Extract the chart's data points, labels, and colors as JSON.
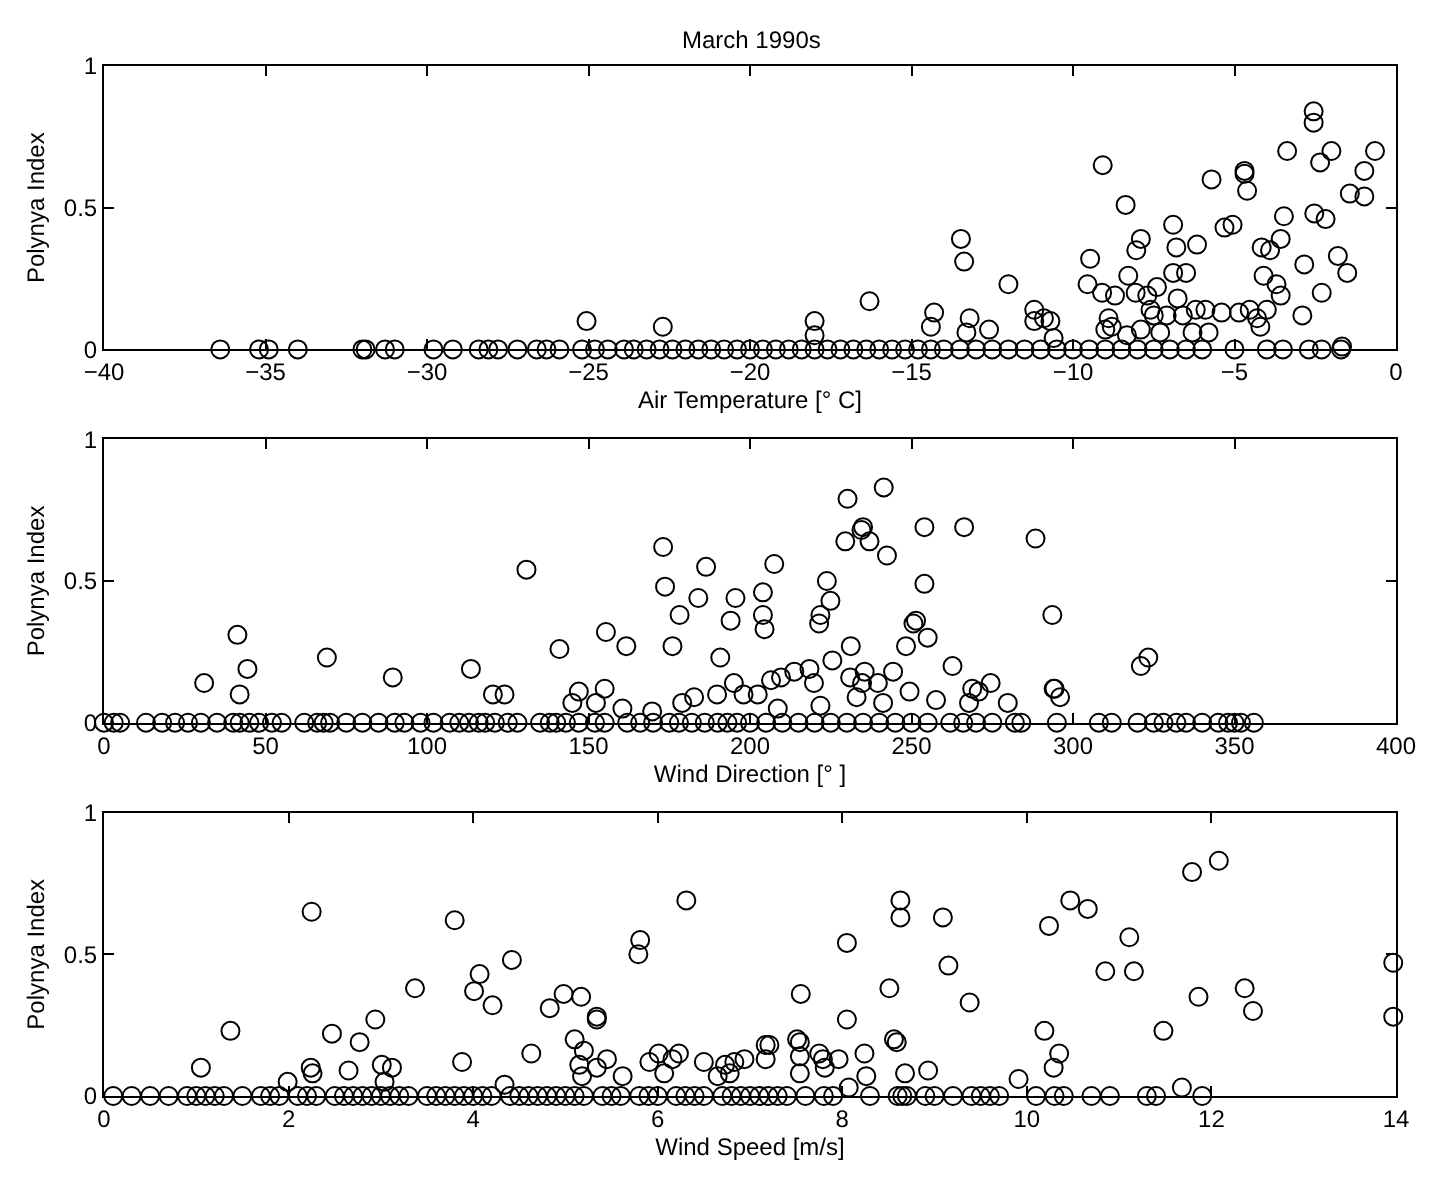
{
  "chart_data": [
    {
      "type": "scatter",
      "title": "March 1990s",
      "xlabel": "Air Temperature [° C]",
      "ylabel": "Polynya Index",
      "marker": "circle",
      "xlim": [
        -40,
        0
      ],
      "xticks": [
        -40,
        -35,
        -30,
        -25,
        -20,
        -15,
        -10,
        -5,
        0
      ],
      "ylim": [
        0,
        1
      ],
      "yticks": [
        0,
        0.5,
        1
      ],
      "series": [
        {
          "color": "#000000",
          "x": [
            -2.55,
            -2.55,
            -3.37,
            -2.0,
            -2.35,
            -0.65,
            -0.98,
            -1.43,
            -0.98,
            -2.53,
            -2.18,
            -9.08,
            -4.69,
            -4.69,
            -5.71,
            -4.61,
            -8.37,
            -3.47,
            -6.9,
            -5.31,
            -5.06,
            -7.9,
            -8.04,
            -6.8,
            -6.16,
            -4.16,
            -3.9,
            -3.57,
            -13.47,
            -13.37,
            -9.47,
            -2.84,
            -1.8,
            -1.51,
            -8.29,
            -6.9,
            -6.5,
            -4.1,
            -3.7,
            -12.0,
            -9.55,
            -9.1,
            -8.7,
            -8.06,
            -7.7,
            -7.4,
            -3.57,
            -2.3,
            -16.3,
            -18.0,
            -14.3,
            -14.4,
            -13.2,
            -13.3,
            -12.6,
            -11.2,
            -11.2,
            -10.9,
            -10.7,
            -10.6,
            -8.9,
            -9.0,
            -8.8,
            -7.6,
            -7.5,
            -7.1,
            -6.76,
            -6.6,
            -6.2,
            -5.9,
            -5.4,
            -4.86,
            -4.53,
            -4.3,
            -4.2,
            -4.0,
            -2.9,
            -8.33,
            -7.9,
            -7.3,
            -6.3,
            -5.8,
            -1.67,
            -18.0,
            -25.06,
            -22.7,
            -36.4,
            -35.2,
            -34.9,
            -34.0,
            -32.0,
            -31.9,
            -31.3,
            -31.0,
            -29.8,
            -29.2,
            -28.4,
            -28.1,
            -27.8,
            -27.2,
            -26.6,
            -26.3,
            -25.9,
            -25.2,
            -24.8,
            -24.4,
            -23.9,
            -23.6,
            -23.2,
            -22.8,
            -22.4,
            -22.0,
            -21.6,
            -21.2,
            -20.8,
            -20.4,
            -20.0,
            -19.6,
            -19.2,
            -18.8,
            -18.4,
            -18.0,
            -17.6,
            -17.2,
            -16.8,
            -16.4,
            -16.0,
            -15.6,
            -15.2,
            -14.8,
            -14.4,
            -14.0,
            -13.5,
            -13.0,
            -12.5,
            -12.0,
            -11.5,
            -11.0,
            -10.5,
            -10.0,
            -9.5,
            -9.0,
            -8.5,
            -8.0,
            -7.5,
            -7.0,
            -6.5,
            -6.0,
            -5.0,
            -4.0,
            -3.5,
            -2.7,
            -2.3,
            -1.7
          ],
          "values": [
            0.84,
            0.8,
            0.7,
            0.7,
            0.66,
            0.7,
            0.63,
            0.55,
            0.54,
            0.48,
            0.46,
            0.65,
            0.63,
            0.62,
            0.6,
            0.56,
            0.51,
            0.47,
            0.44,
            0.43,
            0.44,
            0.39,
            0.35,
            0.36,
            0.37,
            0.36,
            0.35,
            0.39,
            0.39,
            0.31,
            0.32,
            0.3,
            0.33,
            0.27,
            0.26,
            0.27,
            0.27,
            0.26,
            0.23,
            0.23,
            0.23,
            0.2,
            0.19,
            0.2,
            0.19,
            0.22,
            0.19,
            0.2,
            0.17,
            0.1,
            0.13,
            0.08,
            0.11,
            0.06,
            0.07,
            0.14,
            0.1,
            0.11,
            0.1,
            0.04,
            0.11,
            0.07,
            0.08,
            0.14,
            0.12,
            0.12,
            0.18,
            0.12,
            0.14,
            0.14,
            0.13,
            0.13,
            0.14,
            0.11,
            0.08,
            0.14,
            0.12,
            0.05,
            0.07,
            0.06,
            0.06,
            0.06,
            0.01,
            0.05,
            0.1,
            0.08,
            0,
            0,
            0,
            0,
            0,
            0,
            0,
            0,
            0,
            0,
            0,
            0,
            0,
            0,
            0,
            0,
            0,
            0,
            0,
            0,
            0,
            0,
            0,
            0,
            0,
            0,
            0,
            0,
            0,
            0,
            0,
            0,
            0,
            0,
            0,
            0,
            0,
            0,
            0,
            0,
            0,
            0,
            0,
            0,
            0,
            0,
            0,
            0,
            0,
            0,
            0,
            0,
            0,
            0,
            0,
            0,
            0,
            0,
            0,
            0,
            0,
            0,
            0,
            0,
            0,
            0,
            0,
            0
          ]
        }
      ]
    },
    {
      "type": "scatter",
      "xlabel": "Wind Direction [° ]",
      "ylabel": "Polynya Index",
      "marker": "circle",
      "xlim": [
        0,
        400
      ],
      "xticks": [
        0,
        50,
        100,
        150,
        200,
        250,
        300,
        350,
        400
      ],
      "ylim": [
        0,
        1
      ],
      "yticks": [
        0,
        0.5,
        1
      ],
      "series": [
        {
          "color": "#000000",
          "x": [
            31,
            41.3,
            44.4,
            42,
            69,
            89.4,
            113.6,
            120.4,
            124,
            130.8,
            141,
            155.4,
            161.7,
            145,
            147,
            152.3,
            155,
            160.5,
            169.7,
            173.1,
            173.7,
            176,
            178.2,
            184,
            186.4,
            190.8,
            194,
            195.5,
            195,
            179,
            182.7,
            189.8,
            198,
            204,
            204,
            204.5,
            207.5,
            241.4,
            230.2,
            235,
            234.5,
            229.5,
            237,
            242.4,
            254,
            266.3,
            288.4,
            223.8,
            224.9,
            221.8,
            221.4,
            254,
            251.4,
            250.6,
            255,
            248.3,
            293.6,
            231.2,
            225.5,
            262.7,
            323.3,
            321,
            294,
            294.3,
            296,
            206.5,
            213.7,
            218.4,
            219.8,
            231,
            235.5,
            234.7,
            244.3,
            249.4,
            239.6,
            233,
            257.6,
            268.8,
            270.8,
            274.5,
            267.8,
            279.8,
            209.6,
            202.4,
            208.6,
            221.8,
            241.2,
            0,
            3,
            5,
            13,
            18,
            22,
            26,
            30,
            35,
            40,
            42,
            45,
            48,
            52,
            55,
            62,
            66,
            68,
            70,
            75,
            80,
            85,
            90,
            93,
            98,
            102,
            107,
            110,
            113,
            116,
            118,
            121,
            125,
            128,
            135,
            138,
            140,
            143,
            147,
            152,
            155,
            162,
            166,
            170,
            175,
            178,
            182,
            186,
            190,
            193,
            196,
            200,
            205,
            210,
            215,
            220,
            225,
            230,
            235,
            240,
            245,
            250,
            255,
            262,
            266,
            270,
            275,
            282,
            284,
            295,
            308,
            312,
            320,
            325,
            328,
            332,
            335,
            340,
            345,
            348,
            350,
            352,
            356
          ],
          "values": [
            0.14,
            0.31,
            0.19,
            0.1,
            0.23,
            0.16,
            0.19,
            0.1,
            0.1,
            0.54,
            0.26,
            0.32,
            0.27,
            0.07,
            0.11,
            0.07,
            0.12,
            0.05,
            0.04,
            0.62,
            0.48,
            0.27,
            0.38,
            0.44,
            0.55,
            0.23,
            0.36,
            0.44,
            0.14,
            0.07,
            0.09,
            0.1,
            0.1,
            0.46,
            0.38,
            0.33,
            0.56,
            0.83,
            0.79,
            0.69,
            0.68,
            0.64,
            0.64,
            0.59,
            0.69,
            0.69,
            0.65,
            0.5,
            0.43,
            0.38,
            0.35,
            0.49,
            0.36,
            0.35,
            0.3,
            0.27,
            0.38,
            0.27,
            0.22,
            0.2,
            0.23,
            0.2,
            0.12,
            0.12,
            0.09,
            0.15,
            0.18,
            0.19,
            0.14,
            0.16,
            0.18,
            0.14,
            0.18,
            0.11,
            0.14,
            0.09,
            0.08,
            0.12,
            0.11,
            0.14,
            0.07,
            0.07,
            0.16,
            0.1,
            0.05,
            0.06,
            0.07,
            0,
            0,
            0,
            0,
            0,
            0,
            0,
            0,
            0,
            0,
            0,
            0,
            0,
            0,
            0,
            0,
            0,
            0,
            0,
            0,
            0,
            0,
            0,
            0,
            0,
            0,
            0,
            0,
            0,
            0,
            0,
            0,
            0,
            0,
            0,
            0,
            0,
            0,
            0,
            0,
            0,
            0,
            0,
            0,
            0,
            0,
            0,
            0,
            0,
            0,
            0,
            0,
            0,
            0,
            0,
            0,
            0,
            0,
            0,
            0,
            0,
            0,
            0,
            0,
            0,
            0,
            0,
            0,
            0,
            0,
            0,
            0,
            0,
            0,
            0,
            0,
            0,
            0,
            0,
            0,
            0,
            0,
            0
          ]
        }
      ]
    },
    {
      "type": "scatter",
      "xlabel": "Wind Speed [m/s]",
      "ylabel": "Polynya Index",
      "marker": "circle",
      "xlim": [
        0,
        14
      ],
      "xticks": [
        0,
        2,
        4,
        6,
        8,
        10,
        12,
        14
      ],
      "ylim": [
        0,
        1
      ],
      "yticks": [
        0,
        0.5,
        1
      ],
      "series": [
        {
          "color": "#000000",
          "x": [
            2.25,
            3.8,
            6.31,
            5.81,
            5.79,
            4.42,
            4.07,
            4.01,
            4.21,
            3.37,
            4.83,
            4.98,
            5.17,
            5.34,
            5.34,
            1.37,
            2.94,
            2.47,
            2.77,
            1.05,
            2.24,
            2.26,
            2.65,
            3.01,
            3.12,
            3.04,
            3.88,
            4.63,
            5.1,
            5.2,
            5.15,
            5.18,
            5.34,
            5.45,
            5.62,
            5.91,
            6.01,
            6.07,
            6.23,
            6.16,
            6.5,
            6.73,
            6.78,
            6.83,
            6.94,
            7.17,
            7.17,
            1.99,
            4.34,
            6.65,
            11.79,
            12.08,
            8.63,
            8.63,
            9.09,
            10.47,
            10.66,
            10.24,
            11.11,
            8.05,
            9.15,
            10.85,
            11.16,
            8.51,
            7.55,
            9.38,
            11.86,
            12.36,
            12.45,
            13.97,
            13.97,
            11.48,
            10.19,
            8.05,
            7.51,
            7.54,
            8.56,
            8.59,
            7.21,
            7.75,
            7.79,
            7.81,
            7.96,
            8.24,
            7.54,
            7.54,
            8.26,
            8.68,
            8.93,
            10.35,
            10.29,
            9.91,
            8.07,
            11.68,
            0.1,
            0.3,
            0.5,
            0.7,
            0.9,
            1.0,
            1.1,
            1.2,
            1.3,
            1.5,
            1.7,
            1.8,
            1.9,
            2.1,
            2.2,
            2.3,
            2.5,
            2.6,
            2.7,
            2.8,
            2.9,
            3.0,
            3.1,
            3.2,
            3.3,
            3.5,
            3.6,
            3.7,
            3.8,
            3.9,
            4.0,
            4.1,
            4.2,
            4.4,
            4.5,
            4.6,
            4.7,
            4.8,
            4.9,
            5.0,
            5.1,
            5.2,
            5.4,
            5.5,
            5.6,
            5.8,
            5.9,
            6.0,
            6.2,
            6.3,
            6.4,
            6.5,
            6.7,
            6.8,
            6.9,
            7.0,
            7.1,
            7.2,
            7.3,
            7.4,
            7.6,
            7.8,
            7.9,
            8.3,
            8.6,
            8.65,
            8.7,
            8.9,
            9.0,
            9.2,
            9.4,
            9.5,
            9.6,
            9.7,
            10.1,
            10.3,
            10.4,
            10.7,
            10.9,
            11.3,
            11.4,
            11.9
          ],
          "values": [
            0.65,
            0.62,
            0.69,
            0.55,
            0.5,
            0.48,
            0.43,
            0.37,
            0.32,
            0.38,
            0.31,
            0.36,
            0.35,
            0.28,
            0.27,
            0.23,
            0.27,
            0.22,
            0.19,
            0.1,
            0.1,
            0.08,
            0.09,
            0.11,
            0.1,
            0.05,
            0.12,
            0.15,
            0.2,
            0.16,
            0.11,
            0.07,
            0.1,
            0.13,
            0.07,
            0.12,
            0.15,
            0.08,
            0.15,
            0.13,
            0.12,
            0.11,
            0.08,
            0.12,
            0.13,
            0.13,
            0.18,
            0.05,
            0.04,
            0.07,
            0.79,
            0.83,
            0.69,
            0.63,
            0.63,
            0.69,
            0.66,
            0.6,
            0.56,
            0.54,
            0.46,
            0.44,
            0.44,
            0.38,
            0.36,
            0.33,
            0.35,
            0.38,
            0.3,
            0.47,
            0.28,
            0.23,
            0.23,
            0.27,
            0.2,
            0.19,
            0.2,
            0.19,
            0.18,
            0.15,
            0.13,
            0.1,
            0.13,
            0.15,
            0.14,
            0.08,
            0.07,
            0.08,
            0.09,
            0.15,
            0.1,
            0.06,
            0.03,
            0.03,
            0,
            0,
            0,
            0,
            0,
            0,
            0,
            0,
            0,
            0,
            0,
            0,
            0,
            0,
            0,
            0,
            0,
            0,
            0,
            0,
            0,
            0,
            0,
            0,
            0,
            0,
            0,
            0,
            0,
            0,
            0,
            0,
            0,
            0,
            0,
            0,
            0,
            0,
            0,
            0,
            0,
            0,
            0,
            0,
            0,
            0,
            0,
            0,
            0,
            0,
            0,
            0,
            0,
            0,
            0,
            0,
            0,
            0,
            0,
            0,
            0,
            0,
            0,
            0,
            0,
            0,
            0,
            0,
            0,
            0,
            0,
            0,
            0,
            0,
            0,
            0,
            0,
            0,
            0,
            0,
            0,
            0
          ]
        }
      ]
    }
  ]
}
